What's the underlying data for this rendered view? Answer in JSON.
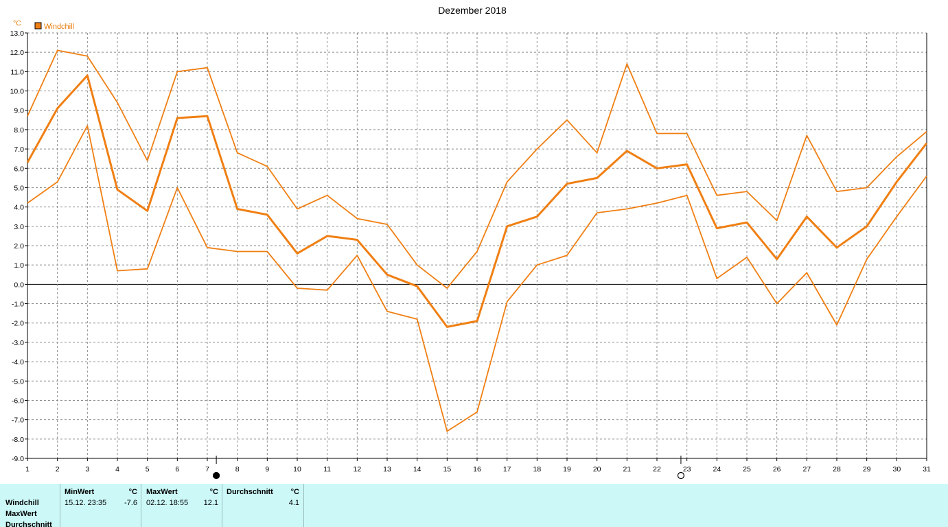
{
  "chart_data": {
    "type": "line",
    "title": "Dezember 2018",
    "yunit": "°C",
    "legend": {
      "label": "Windchill",
      "placement": "top-left"
    },
    "ylim": [
      -9.0,
      13.0
    ],
    "ytick_labels": [
      "13.0",
      "12.0",
      "11.0",
      "10.0",
      "9.0",
      "8.0",
      "7.0",
      "6.0",
      "5.0",
      "4.0",
      "3.0",
      "2.0",
      "1.0",
      "0.0",
      "-1.0",
      "-2.0",
      "-3.0",
      "-4.0",
      "-5.0",
      "-6.0",
      "-7.0",
      "-8.0",
      "-9.0"
    ],
    "x": [
      1,
      2,
      3,
      4,
      5,
      6,
      7,
      8,
      9,
      10,
      11,
      12,
      13,
      14,
      15,
      16,
      17,
      18,
      19,
      20,
      21,
      22,
      23,
      24,
      25,
      26,
      27,
      28,
      29,
      30,
      31
    ],
    "grid": true,
    "series": [
      {
        "role": "max",
        "values": [
          8.7,
          12.1,
          11.8,
          9.4,
          6.4,
          11.0,
          11.2,
          6.8,
          6.1,
          3.9,
          4.6,
          3.4,
          3.1,
          1.0,
          -0.2,
          1.7,
          5.3,
          7.0,
          8.5,
          6.8,
          11.4,
          7.8,
          7.8,
          4.6,
          4.8,
          3.3,
          7.7,
          4.8,
          5.0,
          6.6,
          7.9
        ]
      },
      {
        "role": "avg",
        "values": [
          6.3,
          9.1,
          10.8,
          4.9,
          3.8,
          8.6,
          8.7,
          3.9,
          3.6,
          1.6,
          2.5,
          2.3,
          0.5,
          -0.1,
          -2.2,
          -1.9,
          3.0,
          3.5,
          5.2,
          5.5,
          6.9,
          6.0,
          6.2,
          2.9,
          3.2,
          1.3,
          3.5,
          1.9,
          3.0,
          5.3,
          7.3
        ]
      },
      {
        "role": "min",
        "values": [
          4.2,
          5.3,
          8.2,
          0.7,
          0.8,
          5.0,
          1.9,
          1.7,
          1.7,
          -0.2,
          -0.3,
          1.5,
          -1.4,
          -1.8,
          -7.6,
          -6.6,
          -0.9,
          1.0,
          1.5,
          3.7,
          3.9,
          4.2,
          4.6,
          0.3,
          1.4,
          -1.0,
          0.6,
          -2.1,
          1.3,
          3.5,
          5.6
        ]
      }
    ],
    "markers": [
      {
        "symbol": "full-moon-icon",
        "x": 7.3
      },
      {
        "symbol": "new-moon-icon",
        "x": 22.8
      }
    ],
    "colors": {
      "series": "#f07f13",
      "grid": "#8c8c8c",
      "zero_line": "#000000",
      "legend_text": "#e87800"
    }
  },
  "stats": {
    "row_labels": [
      "Windchill",
      "MaxWert",
      "Durchschnitt"
    ],
    "columns": [
      {
        "header": "MinWert",
        "unit": "°C",
        "datetime": "15.12.  23:35",
        "value": "-7.6"
      },
      {
        "header": "MaxWert",
        "unit": "°C",
        "datetime": "02.12.  18:55",
        "value": "12.1"
      },
      {
        "header": "Durchschnitt",
        "unit": "°C",
        "datetime": "",
        "value": "4.1"
      }
    ],
    "background": "#ccf8f8"
  }
}
